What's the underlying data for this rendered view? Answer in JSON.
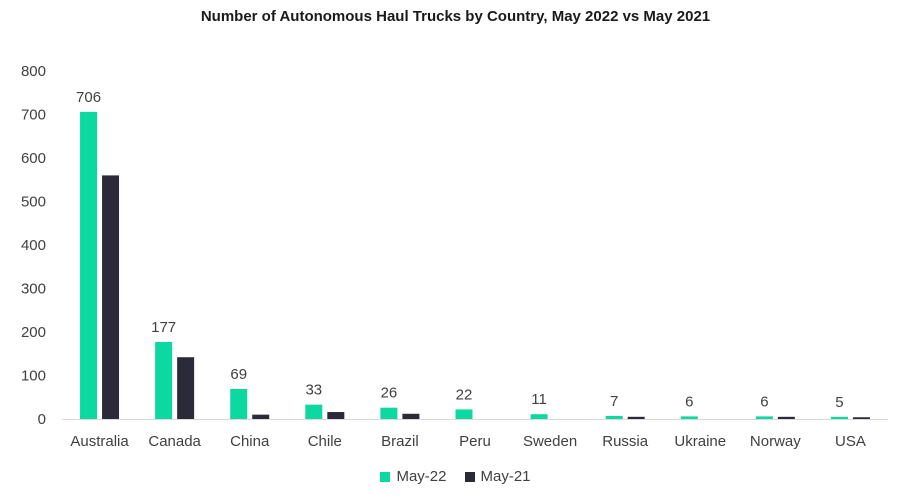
{
  "chart_data": {
    "type": "bar",
    "title": "Number of Autonomous Haul Trucks by Country, May 2022 vs May 2021",
    "xlabel": "",
    "ylabel": "",
    "ylim": [
      0,
      800
    ],
    "yticks": [
      0,
      100,
      200,
      300,
      400,
      500,
      600,
      700,
      800
    ],
    "categories": [
      "Australia",
      "Canada",
      "China",
      "Chile",
      "Brazil",
      "Peru",
      "Sweden",
      "Russia",
      "Ukraine",
      "Norway",
      "USA"
    ],
    "series": [
      {
        "name": "May-22",
        "color": "#0bd9a0",
        "values": [
          706,
          177,
          69,
          33,
          26,
          22,
          11,
          7,
          6,
          6,
          5
        ],
        "data_labels": [
          "706",
          "177",
          "69",
          "33",
          "26",
          "22",
          "11",
          "7",
          "6",
          "6",
          "5"
        ]
      },
      {
        "name": "May-21",
        "color": "#2a2a38",
        "values": [
          560,
          142,
          10,
          16,
          12,
          0,
          0,
          5,
          0,
          5,
          4
        ]
      }
    ],
    "grid": false,
    "legend_position": "bottom"
  }
}
